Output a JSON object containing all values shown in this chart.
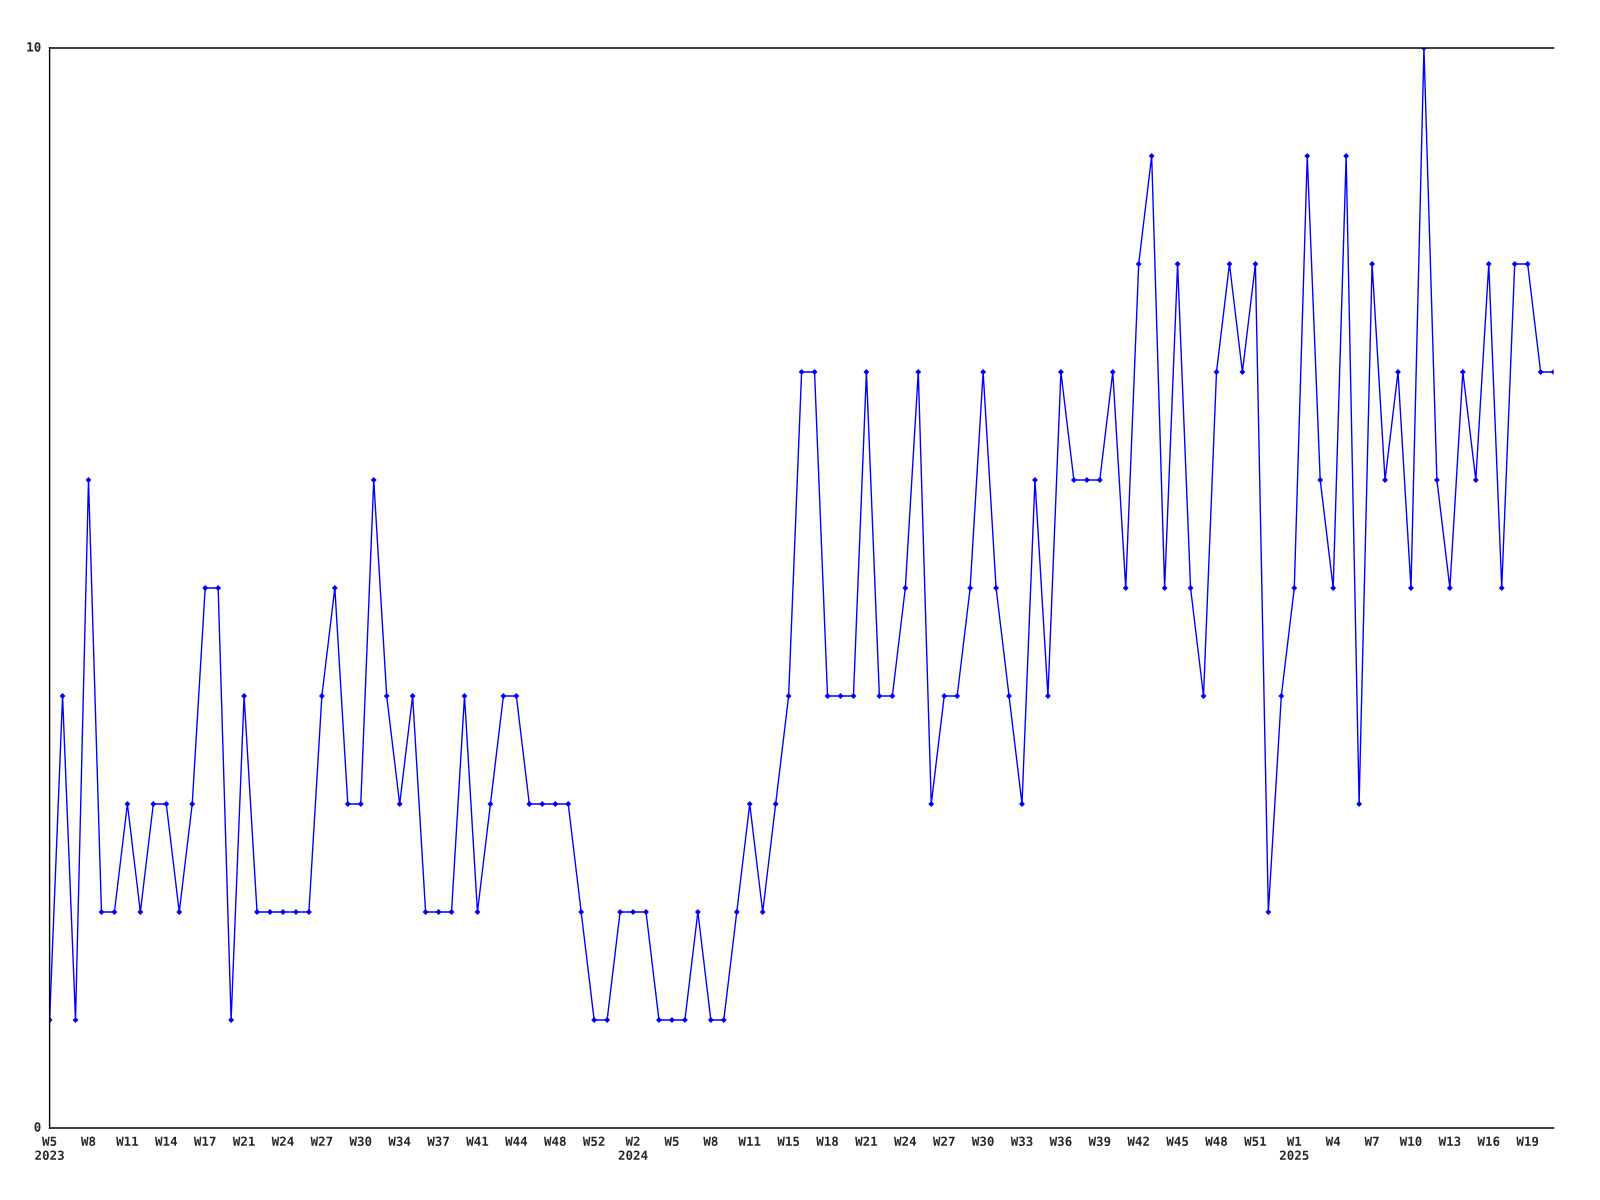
{
  "chart_data": {
    "type": "line",
    "categories": [
      "W5\n2023",
      null,
      null,
      "W8",
      null,
      null,
      "W11",
      null,
      null,
      "W14",
      null,
      null,
      "W17",
      null,
      null,
      "W21",
      null,
      null,
      "W24",
      null,
      null,
      "W27",
      null,
      null,
      "W30",
      null,
      null,
      "W34",
      null,
      null,
      "W37",
      null,
      null,
      "W41",
      null,
      null,
      "W44",
      null,
      null,
      "W48",
      null,
      null,
      "W52",
      null,
      null,
      "W2\n2024",
      null,
      null,
      "W5",
      null,
      null,
      "W8",
      null,
      null,
      "W11",
      null,
      null,
      "W15",
      null,
      null,
      "W18",
      null,
      null,
      "W21",
      null,
      null,
      "W24",
      null,
      null,
      "W27",
      null,
      null,
      "W30",
      null,
      null,
      "W33",
      null,
      null,
      "W36",
      null,
      null,
      "W39",
      null,
      null,
      "W42",
      null,
      null,
      "W45",
      null,
      null,
      "W48",
      null,
      null,
      "W51",
      null,
      null,
      "W1\n2025",
      null,
      null,
      "W4",
      null,
      null,
      "W7",
      null,
      null,
      "W10",
      null,
      null,
      "W13",
      null,
      null,
      "W16",
      null,
      null,
      "W19",
      null,
      null
    ],
    "series": [
      {
        "color": "#0000ff",
        "values": [
          1,
          4,
          1,
          6,
          2,
          2,
          3,
          2,
          3,
          3,
          2,
          3,
          5,
          5,
          1,
          4,
          2,
          2,
          2,
          2,
          2,
          4,
          5,
          3,
          3,
          6,
          4,
          3,
          4,
          2,
          2,
          2,
          4,
          2,
          3,
          4,
          4,
          3,
          3,
          3,
          3,
          2,
          1,
          1,
          2,
          2,
          2,
          1,
          1,
          1,
          2,
          1,
          1,
          2,
          3,
          2,
          3,
          4,
          7,
          7,
          4,
          4,
          4,
          7,
          4,
          4,
          5,
          7,
          3,
          4,
          4,
          5,
          7,
          5,
          4,
          3,
          6,
          4,
          7,
          6,
          6,
          6,
          7,
          5,
          8,
          9,
          5,
          8,
          5,
          4,
          7,
          8,
          7,
          8,
          2,
          4,
          5,
          9,
          6,
          5,
          9,
          3,
          8,
          6,
          7,
          5,
          10,
          6,
          5,
          7,
          6,
          8,
          5,
          8,
          8,
          7,
          7
        ]
      }
    ],
    "ylim": [
      0,
      10
    ],
    "yticks": [
      0,
      10
    ],
    "grid": false,
    "legend": false,
    "marker": "diamond",
    "line_style": "solid"
  }
}
